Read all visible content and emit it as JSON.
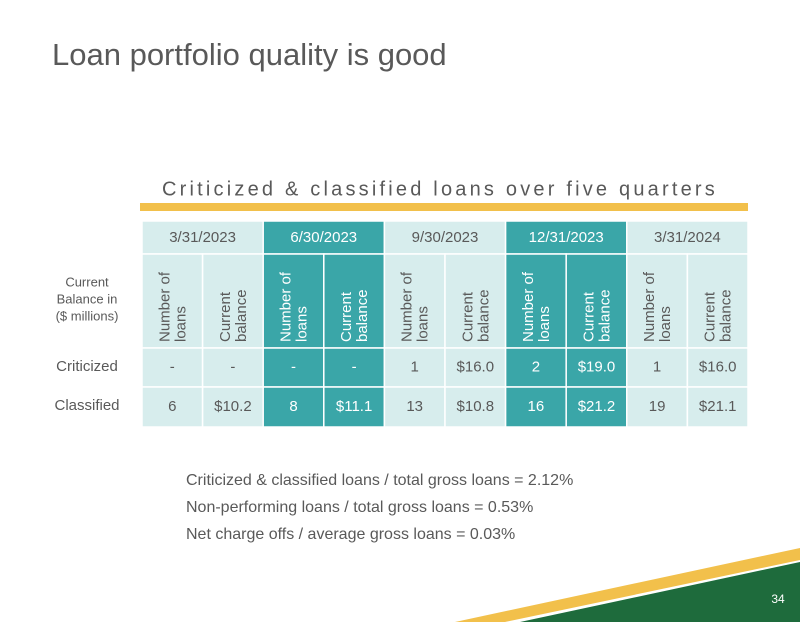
{
  "header": {
    "title": "Loan portfolio quality is good"
  },
  "table": {
    "title": "Criticized & classified loans over five quarters",
    "corner_label": [
      "Current",
      "Balance in",
      "($ millions)"
    ],
    "periods": [
      "3/31/2023",
      "6/30/2023",
      "9/30/2023",
      "12/31/2023",
      "3/31/2024"
    ],
    "subheaders": [
      [
        "Number of",
        "loans"
      ],
      [
        "Current",
        "balance"
      ]
    ],
    "rows": [
      {
        "label": "Criticized",
        "cells": [
          "-",
          "-",
          "-",
          "-",
          "1",
          "$16.0",
          "2",
          "$19.0",
          "1",
          "$16.0"
        ]
      },
      {
        "label": "Classified",
        "cells": [
          "6",
          "$10.2",
          "8",
          "$11.1",
          "13",
          "$10.8",
          "16",
          "$21.2",
          "19",
          "$21.1"
        ]
      }
    ]
  },
  "notes": [
    "Criticized & classified loans / total gross loans = 2.12%",
    "Non-performing loans / total gross loans = 0.53%",
    "Net charge offs / average gross loans = 0.03%"
  ],
  "footer": {
    "page_number": "34"
  }
}
